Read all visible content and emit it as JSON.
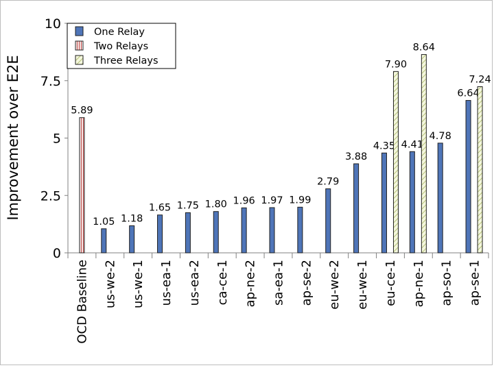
{
  "chart_data": {
    "type": "bar",
    "ylabel": "Improvement over E2E",
    "ylim": [
      0,
      10
    ],
    "yticks": [
      {
        "value": 0,
        "label": "0"
      },
      {
        "value": 2.5,
        "label": "2.5"
      },
      {
        "value": 5,
        "label": "5"
      },
      {
        "value": 7.5,
        "label": "7.5"
      },
      {
        "value": 10,
        "label": "10"
      }
    ],
    "categories": [
      "OCD Baseline",
      "us-we-2",
      "us-we-1",
      "us-ea-1",
      "us-ea-2",
      "ca-ce-1",
      "ap-ne-2",
      "sa-ea-1",
      "ap-se-2",
      "eu-we-2",
      "eu-we-1",
      "eu-ce-1",
      "ap-ne-1",
      "ap-so-1",
      "ap-se-1"
    ],
    "series": [
      {
        "name": "One Relay",
        "color": "#4f75b8",
        "values": [
          null,
          1.05,
          1.18,
          1.65,
          1.75,
          1.8,
          1.96,
          1.97,
          1.99,
          2.79,
          3.88,
          4.35,
          4.41,
          4.78,
          6.64
        ],
        "labels": [
          null,
          "1.05",
          "1.18",
          "1.65",
          "1.75",
          "1.80",
          "1.96",
          "1.97",
          "1.99",
          "2.79",
          "3.88",
          "4.35",
          "4.41",
          "4.78",
          "6.64"
        ]
      },
      {
        "name": "Two Relays",
        "color": "#c0504d",
        "values": [
          5.89,
          null,
          null,
          null,
          null,
          null,
          null,
          null,
          null,
          null,
          null,
          null,
          null,
          null,
          null
        ],
        "labels": [
          "5.89",
          null,
          null,
          null,
          null,
          null,
          null,
          null,
          null,
          null,
          null,
          null,
          null,
          null,
          null
        ]
      },
      {
        "name": "Three Relays",
        "color": "#c5d08e",
        "values": [
          null,
          null,
          null,
          null,
          null,
          null,
          null,
          null,
          null,
          null,
          null,
          7.9,
          8.64,
          null,
          7.24
        ],
        "labels": [
          null,
          null,
          null,
          null,
          null,
          null,
          null,
          null,
          null,
          null,
          null,
          "7.90",
          "8.64",
          null,
          "7.24"
        ]
      }
    ],
    "legend_position": "top-left"
  }
}
